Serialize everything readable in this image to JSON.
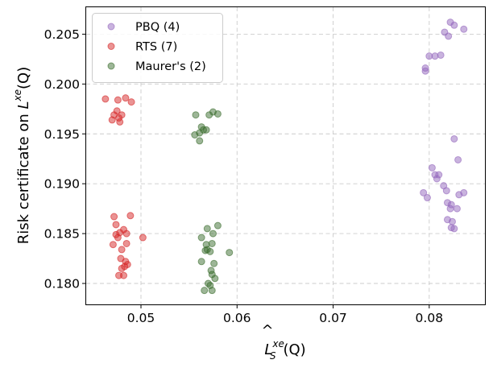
{
  "chart_data": {
    "type": "scatter",
    "title": "",
    "xlabel_base": "L",
    "xlabel_sup": "xe",
    "xlabel_sub": "S",
    "xlabel_arg": "(Q)",
    "ylabel_prefix": "Risk certificate on ",
    "ylabel_base": "L",
    "ylabel_sup": "xe",
    "ylabel_arg": "(Q)",
    "xlim": [
      0.0443,
      0.0858
    ],
    "ylim": [
      0.1779,
      0.2077
    ],
    "xticks": [
      0.05,
      0.06,
      0.07,
      0.08
    ],
    "xtick_labels": [
      "0.05",
      "0.06",
      "0.07",
      "0.08"
    ],
    "yticks": [
      0.18,
      0.185,
      0.19,
      0.195,
      0.2,
      0.205
    ],
    "ytick_labels": [
      "0.180",
      "0.185",
      "0.190",
      "0.195",
      "0.200",
      "0.205"
    ],
    "grid": true,
    "legend_position": "top-left",
    "series": [
      {
        "name": "PBQ (4)",
        "color": "#9467bd",
        "points": [
          [
            0.0822,
            0.2062
          ],
          [
            0.0826,
            0.2059
          ],
          [
            0.0836,
            0.2055
          ],
          [
            0.0816,
            0.2052
          ],
          [
            0.082,
            0.2048
          ],
          [
            0.0812,
            0.2029
          ],
          [
            0.08,
            0.2028
          ],
          [
            0.0806,
            0.2028
          ],
          [
            0.0796,
            0.2016
          ],
          [
            0.0796,
            0.2013
          ],
          [
            0.0826,
            0.1945
          ],
          [
            0.083,
            0.1924
          ],
          [
            0.0803,
            0.1916
          ],
          [
            0.0806,
            0.1909
          ],
          [
            0.081,
            0.1909
          ],
          [
            0.0808,
            0.1905
          ],
          [
            0.0815,
            0.1898
          ],
          [
            0.0818,
            0.1893
          ],
          [
            0.0836,
            0.1891
          ],
          [
            0.0794,
            0.1891
          ],
          [
            0.0831,
            0.1889
          ],
          [
            0.0798,
            0.1886
          ],
          [
            0.0819,
            0.1881
          ],
          [
            0.0823,
            0.1879
          ],
          [
            0.0829,
            0.1875
          ],
          [
            0.0822,
            0.1875
          ],
          [
            0.0819,
            0.1864
          ],
          [
            0.0824,
            0.1862
          ],
          [
            0.0823,
            0.1856
          ],
          [
            0.0826,
            0.1855
          ]
        ]
      },
      {
        "name": "RTS (7)",
        "color": "#d62728",
        "points": [
          [
            0.0463,
            0.1985
          ],
          [
            0.0484,
            0.1986
          ],
          [
            0.0476,
            0.1984
          ],
          [
            0.049,
            0.1982
          ],
          [
            0.0475,
            0.1973
          ],
          [
            0.0472,
            0.1969
          ],
          [
            0.048,
            0.1969
          ],
          [
            0.0477,
            0.1966
          ],
          [
            0.047,
            0.1964
          ],
          [
            0.0478,
            0.1962
          ],
          [
            0.0472,
            0.1867
          ],
          [
            0.0489,
            0.1868
          ],
          [
            0.0474,
            0.1859
          ],
          [
            0.0482,
            0.1854
          ],
          [
            0.0485,
            0.185
          ],
          [
            0.0478,
            0.1851
          ],
          [
            0.0474,
            0.1849
          ],
          [
            0.0476,
            0.1846
          ],
          [
            0.0502,
            0.1846
          ],
          [
            0.0471,
            0.1839
          ],
          [
            0.0485,
            0.184
          ],
          [
            0.048,
            0.1834
          ],
          [
            0.0479,
            0.1825
          ],
          [
            0.0484,
            0.1822
          ],
          [
            0.0486,
            0.1819
          ],
          [
            0.0483,
            0.1817
          ],
          [
            0.048,
            0.1815
          ],
          [
            0.0477,
            0.1808
          ],
          [
            0.0482,
            0.1808
          ]
        ]
      },
      {
        "name": "Maurer's (2)",
        "color": "#3c6e2f",
        "points": [
          [
            0.0557,
            0.1969
          ],
          [
            0.058,
            0.197
          ],
          [
            0.0571,
            0.1969
          ],
          [
            0.0575,
            0.1972
          ],
          [
            0.0563,
            0.1957
          ],
          [
            0.0565,
            0.1954
          ],
          [
            0.0568,
            0.1954
          ],
          [
            0.0561,
            0.1951
          ],
          [
            0.0556,
            0.1949
          ],
          [
            0.0561,
            0.1943
          ],
          [
            0.058,
            0.1858
          ],
          [
            0.0569,
            0.1855
          ],
          [
            0.0575,
            0.185
          ],
          [
            0.0563,
            0.1846
          ],
          [
            0.0568,
            0.1839
          ],
          [
            0.0574,
            0.184
          ],
          [
            0.0569,
            0.1834
          ],
          [
            0.0567,
            0.1833
          ],
          [
            0.0572,
            0.1832
          ],
          [
            0.0592,
            0.1831
          ],
          [
            0.0563,
            0.1822
          ],
          [
            0.0576,
            0.182
          ],
          [
            0.0573,
            0.1813
          ],
          [
            0.0574,
            0.1809
          ],
          [
            0.0577,
            0.1805
          ],
          [
            0.057,
            0.18
          ],
          [
            0.0572,
            0.1798
          ],
          [
            0.0566,
            0.1793
          ],
          [
            0.0574,
            0.1793
          ]
        ]
      }
    ]
  }
}
